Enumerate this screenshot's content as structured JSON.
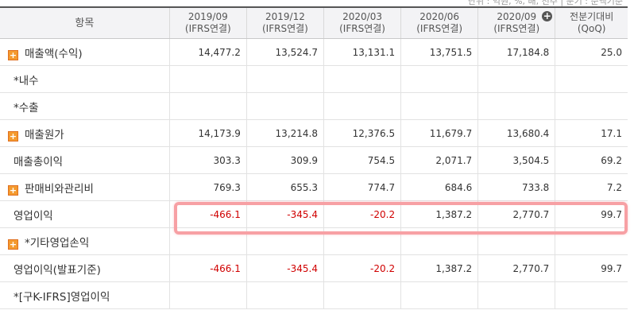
{
  "top_note": "단위 : 억원, %, 배, 천주 | 분기 : 순액기준",
  "table": {
    "header": {
      "item_label": "항목",
      "periods": [
        {
          "year": "2019/09",
          "sub": "(IFRS연결)"
        },
        {
          "year": "2019/12",
          "sub": "(IFRS연결)"
        },
        {
          "year": "2020/03",
          "sub": "(IFRS연결)"
        },
        {
          "year": "2020/06",
          "sub": "(IFRS연결)"
        },
        {
          "year": "2020/09",
          "sub": "(IFRS연결)"
        }
      ],
      "qoq_label": "전분기대비",
      "qoq_sub": "(QoQ)",
      "expand_icon": "plus-circle-icon"
    },
    "rows": [
      {
        "label": "매출액(수익)",
        "toggle": true,
        "values": [
          "14,477.2",
          "13,524.7",
          "13,131.1",
          "13,751.5",
          "17,184.8"
        ],
        "qoq": "25.0"
      },
      {
        "label": "*내수",
        "toggle": false,
        "values": [
          "",
          "",
          "",
          "",
          ""
        ],
        "qoq": ""
      },
      {
        "label": "*수출",
        "toggle": false,
        "values": [
          "",
          "",
          "",
          "",
          ""
        ],
        "qoq": ""
      },
      {
        "label": "매출원가",
        "toggle": true,
        "values": [
          "14,173.9",
          "13,214.8",
          "12,376.5",
          "11,679.7",
          "13,680.4"
        ],
        "qoq": "17.1"
      },
      {
        "label": "매출총이익",
        "toggle": false,
        "values": [
          "303.3",
          "309.9",
          "754.5",
          "2,071.7",
          "3,504.5"
        ],
        "qoq": "69.2"
      },
      {
        "label": "판매비와관리비",
        "toggle": true,
        "values": [
          "769.3",
          "655.3",
          "774.7",
          "684.6",
          "733.8"
        ],
        "qoq": "7.2"
      },
      {
        "label": "영업이익",
        "toggle": false,
        "highlight": true,
        "values": [
          "-466.1",
          "-345.4",
          "-20.2",
          "1,387.2",
          "2,770.7"
        ],
        "qoq": "99.7"
      },
      {
        "label": "*기타영업손익",
        "toggle": true,
        "values": [
          "",
          "",
          "",
          "",
          ""
        ],
        "qoq": ""
      },
      {
        "label": "영업이익(발표기준)",
        "toggle": false,
        "values": [
          "-466.1",
          "-345.4",
          "-20.2",
          "1,387.2",
          "2,770.7"
        ],
        "qoq": "99.7"
      },
      {
        "label": "*[구K-IFRS]영업이익",
        "toggle": false,
        "values": [
          "",
          "",
          "",
          "",
          ""
        ],
        "qoq": ""
      }
    ]
  },
  "colors": {
    "negative": "#d00000",
    "highlight_border": "#f7a0a4",
    "toggle_fill": "#f49a2e",
    "header_bg": "#f3f3f5"
  }
}
